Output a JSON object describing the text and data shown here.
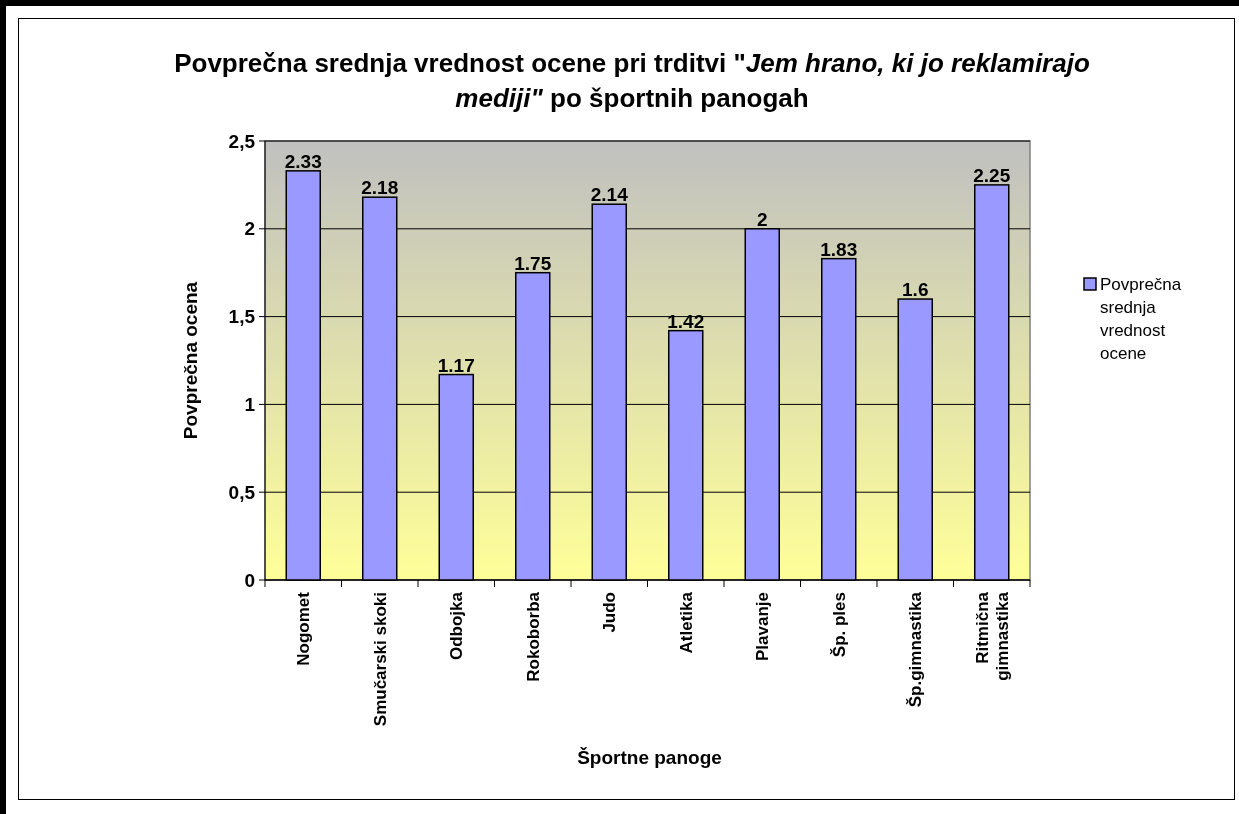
{
  "chart_data": {
    "type": "bar",
    "title": "Povprečna srednja vrednost ocene pri trditvi \"Jem hrano, ki jo reklamirajo mediji\" po športnih panogah",
    "xlabel": "Športne panoge",
    "ylabel": "Povprečna ocena",
    "categories": [
      "Nogomet",
      "Smučarski skoki",
      "Odbojka",
      "Rokoborba",
      "Judo",
      "Atletika",
      "Plavanje",
      "Šp. ples",
      "Šp.gimnastika",
      "Ritmična gimnastika"
    ],
    "series": [
      {
        "name": "Povprečna srednja vrednost ocene",
        "color": "#9999ff",
        "values": [
          2.33,
          2.18,
          1.17,
          1.75,
          2.14,
          1.42,
          2,
          1.83,
          1.6,
          2.25
        ]
      }
    ],
    "ylim": [
      0,
      2.5
    ],
    "yticks": [
      0,
      {
        "value": 0.5,
        "label": "0,5"
      },
      1,
      {
        "value": 1.5,
        "label": "1,5"
      },
      2,
      {
        "value": 2.5,
        "label": "2,5"
      }
    ],
    "grid": "y",
    "legend": "right",
    "data_labels": true
  }
}
